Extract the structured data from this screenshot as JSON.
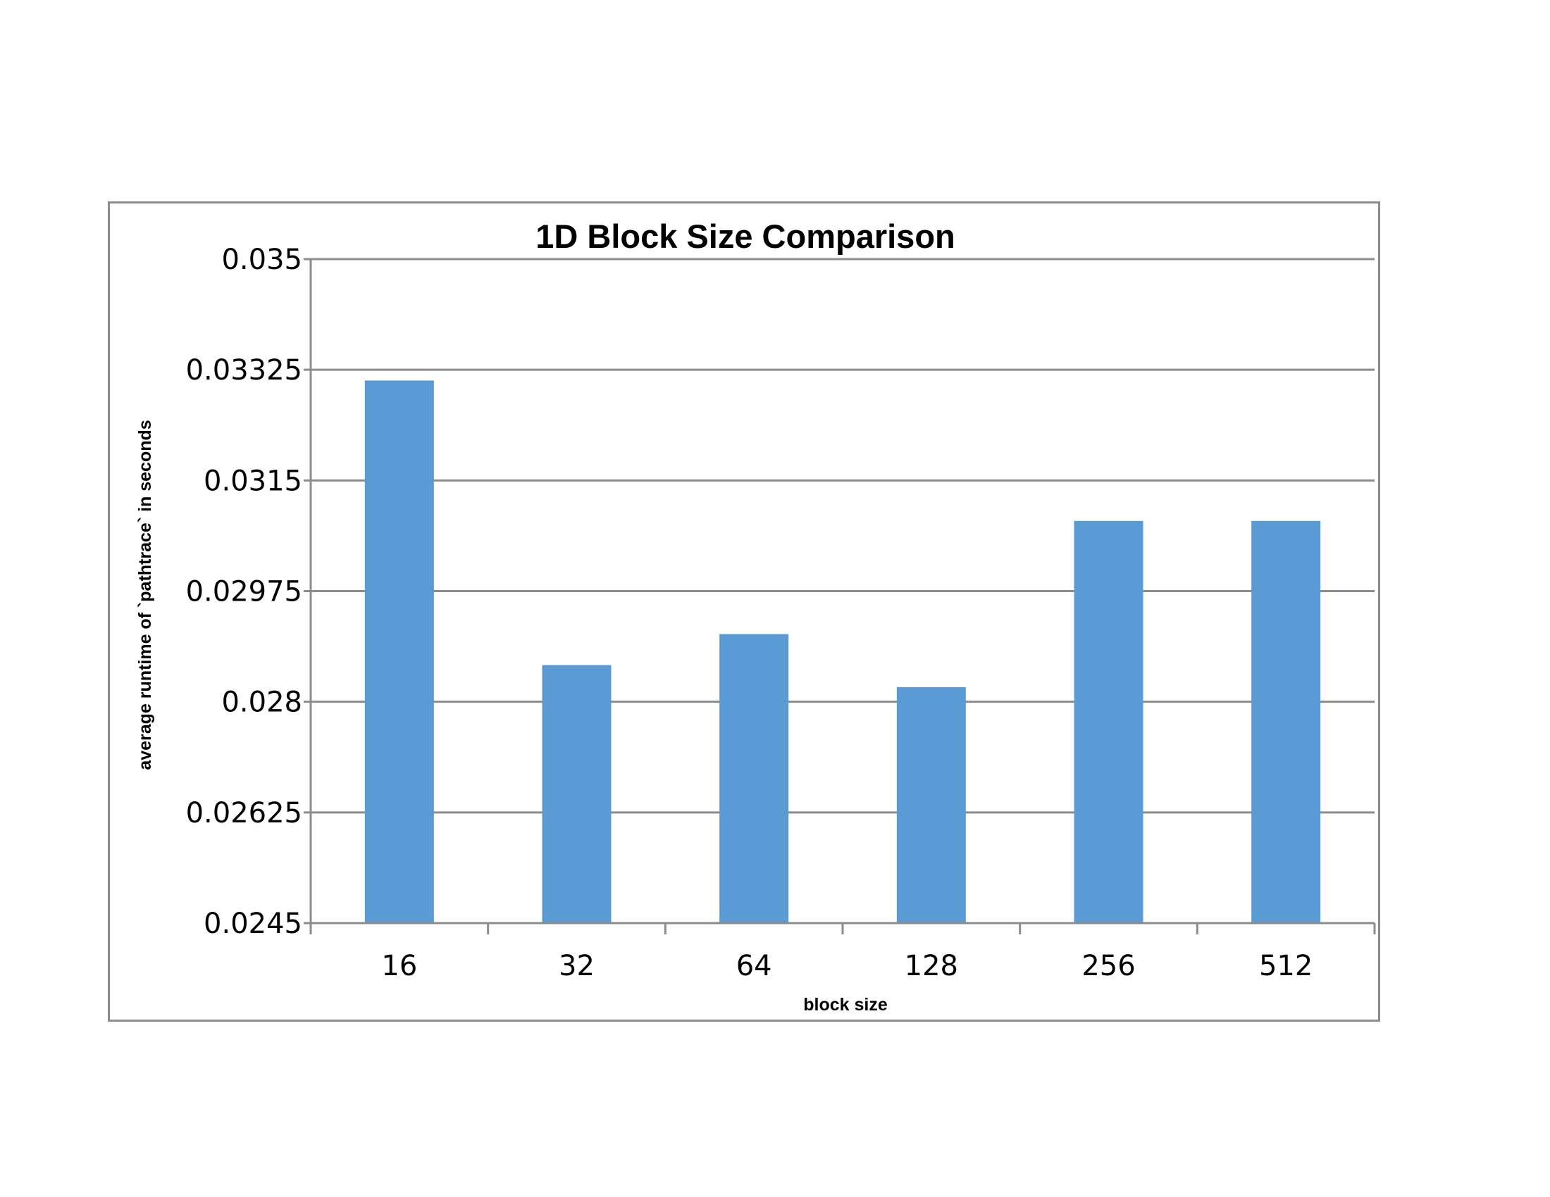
{
  "chart_data": {
    "type": "bar",
    "title": "1D Block Size Comparison",
    "xlabel": "block size",
    "ylabel": "average runtime of `pathtrace` in seconds",
    "categories": [
      "16",
      "32",
      "64",
      "128",
      "256",
      "512"
    ],
    "series": [
      {
        "values": [
          0.03308,
          0.02858,
          0.02907,
          0.02823,
          0.03086,
          0.03086
        ]
      }
    ],
    "ylim": [
      0.0245,
      0.035
    ],
    "yticks": [
      0.0245,
      0.02625,
      0.028,
      0.02975,
      0.0315,
      0.03325,
      0.035
    ],
    "ytick_labels": [
      "0.0245",
      "0.02625",
      "0.028",
      "0.02975",
      "0.0315",
      "0.03325",
      "0.035"
    ],
    "grid": true,
    "legend": "none",
    "colors": {
      "bar": "#5b9bd5",
      "grid": "#8c8c8c",
      "axis": "#8c8c8c",
      "frame": "#8c8c8c"
    }
  }
}
